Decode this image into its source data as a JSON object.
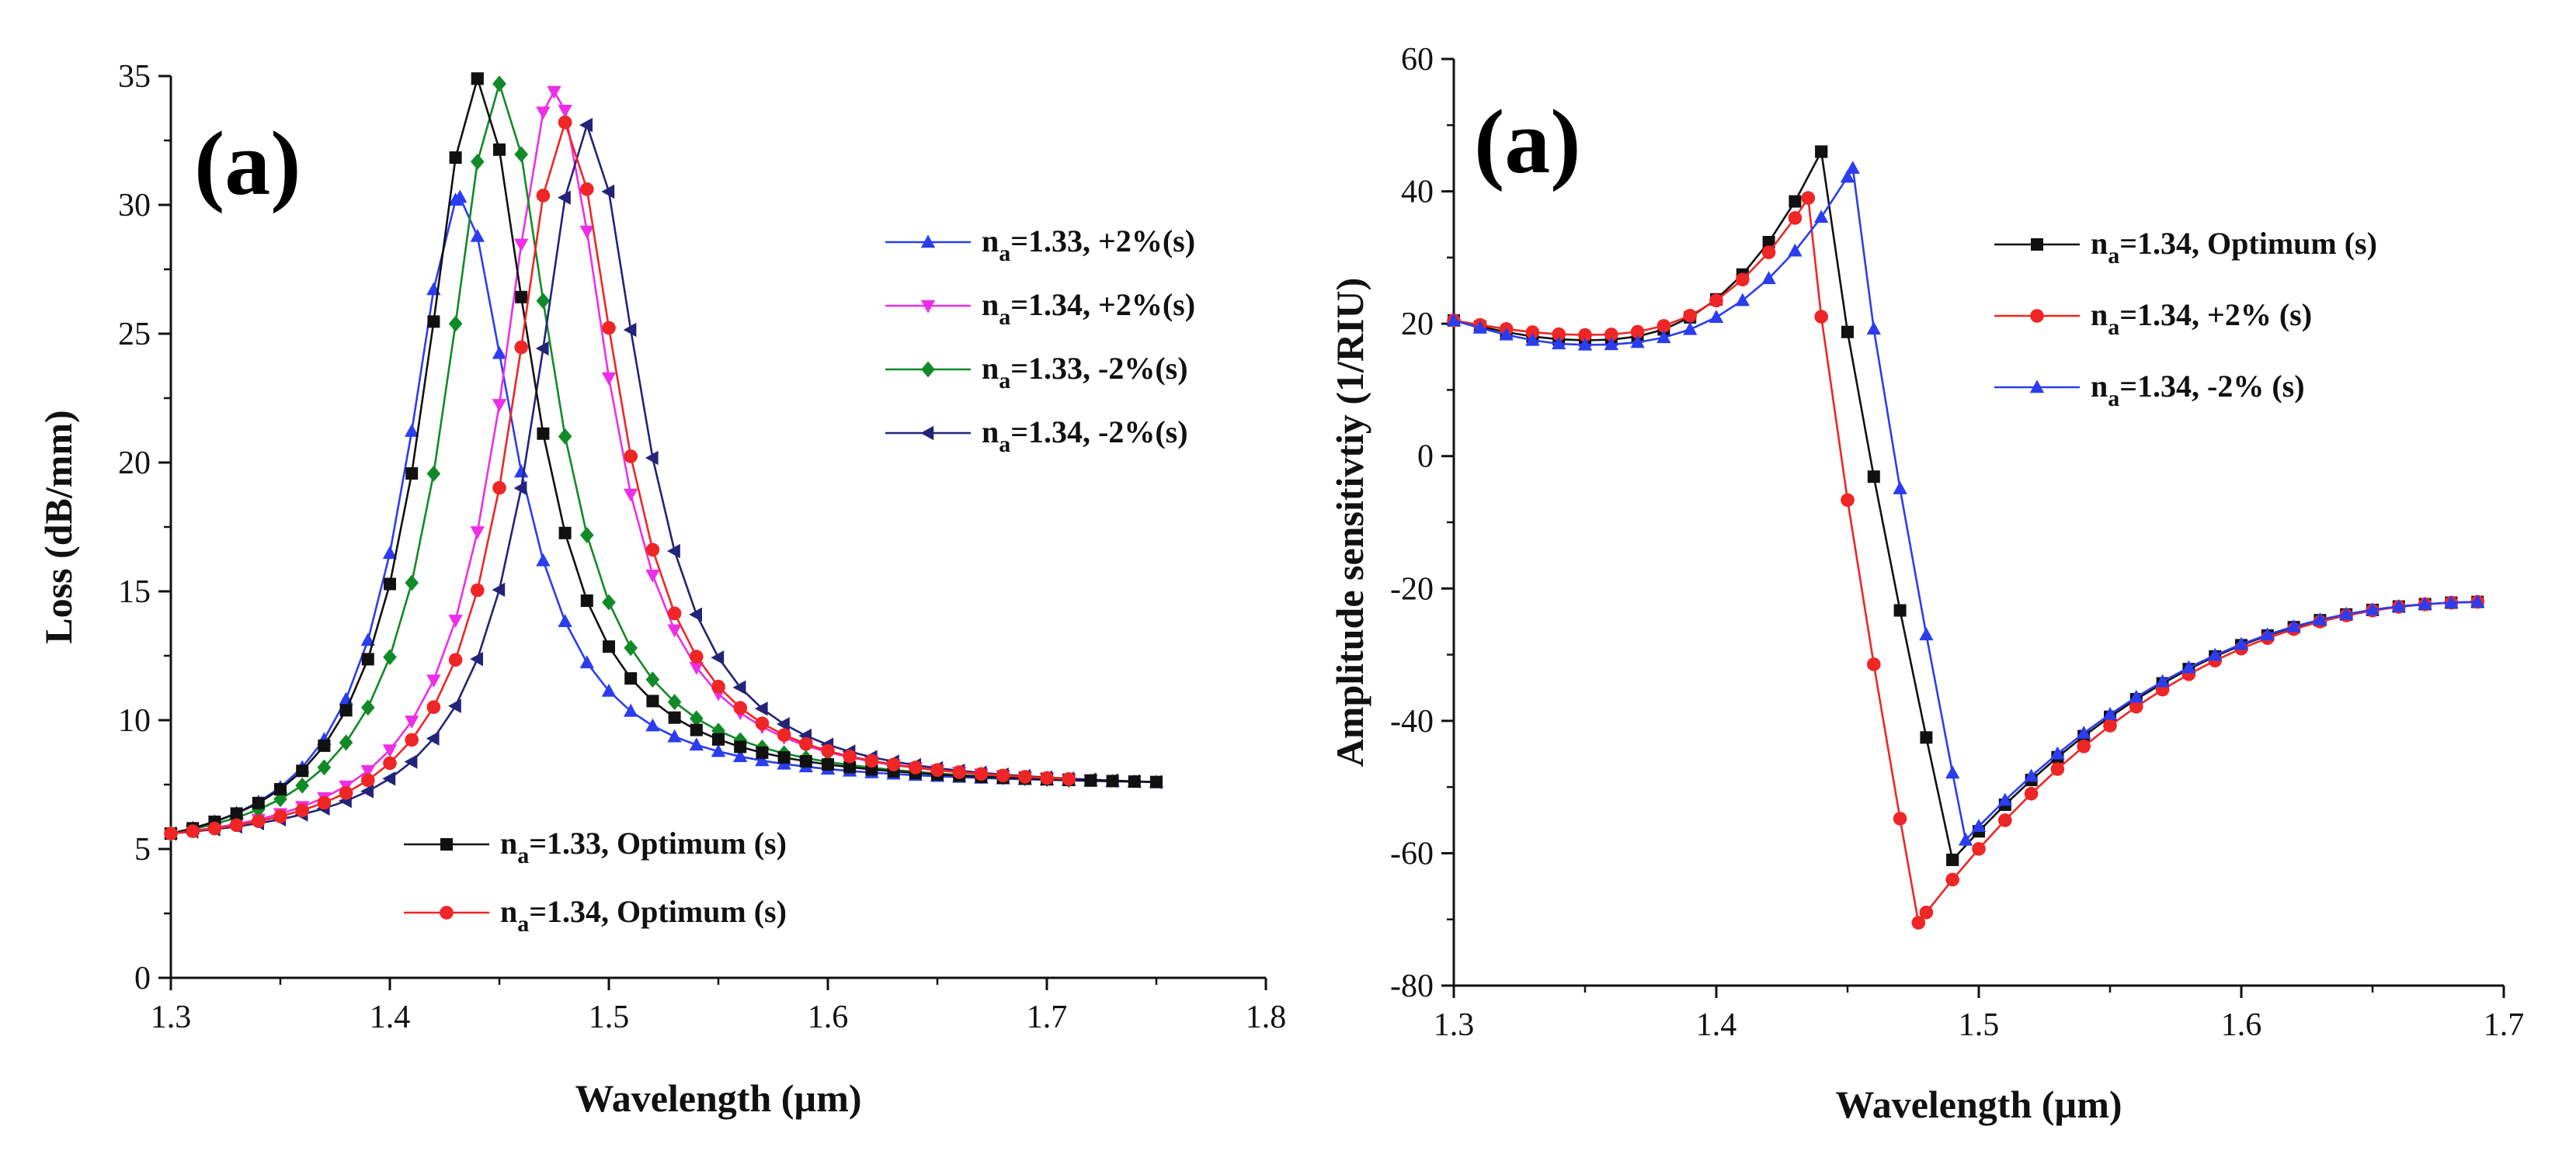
{
  "chart_data": [
    {
      "type": "line",
      "panel_label": "(a)",
      "xlabel": "Wavelength (µm)",
      "ylabel": "Loss (dB/mm)",
      "xlim": [
        1.3,
        1.8
      ],
      "ylim": [
        0,
        35
      ],
      "xticks": [
        1.3,
        1.4,
        1.5,
        1.6,
        1.7,
        1.8
      ],
      "xtick_labels": [
        "1.3",
        "1.4",
        "1.5",
        "1.6",
        "1.7",
        "1.8"
      ],
      "yticks": [
        0,
        5,
        10,
        15,
        20,
        25,
        30,
        35
      ],
      "ytick_labels": [
        "0",
        "5",
        "10",
        "15",
        "20",
        "25",
        "30",
        "35"
      ],
      "legend_groups": [
        {
          "position": "top-right",
          "series": [
            0,
            1,
            2,
            3
          ]
        },
        {
          "position": "bottom-center",
          "series": [
            4,
            5
          ]
        }
      ],
      "series": [
        {
          "name_main": "n",
          "name_sub": "a",
          "name_rest": "=1.33, +2%(s)",
          "color": "#2b3df0",
          "marker": "triangle-up",
          "x_start": 1.3,
          "x_step": 0.01,
          "peak": 1.432,
          "peak_value": 30.3,
          "n_points": 46
        },
        {
          "name_main": "n",
          "name_sub": "a",
          "name_rest": "=1.34, +2%(s)",
          "color": "#ee2ee8",
          "marker": "triangle-down",
          "x_start": 1.3,
          "x_step": 0.01,
          "peak": 1.475,
          "peak_value": 34.4,
          "n_points": 43
        },
        {
          "name_main": "n",
          "name_sub": "a",
          "name_rest": "=1.33, -2%(s)",
          "color": "#108a26",
          "marker": "diamond",
          "x_start": 1.3,
          "x_step": 0.01,
          "peak": 1.45,
          "peak_value": 34.7,
          "n_points": 42
        },
        {
          "name_main": "n",
          "name_sub": "a",
          "name_rest": "=1.34, -2%(s)",
          "color": "#23237a",
          "marker": "triangle-left",
          "x_start": 1.3,
          "x_step": 0.01,
          "peak": 1.49,
          "peak_value": 33.1,
          "n_points": 46
        },
        {
          "name_main": "n",
          "name_sub": "a",
          "name_rest": "=1.33, Optimum (s)",
          "color": "#111111",
          "marker": "square",
          "x_start": 1.3,
          "x_step": 0.01,
          "peak": 1.44,
          "peak_value": 34.9,
          "n_points": 46
        },
        {
          "name_main": "n",
          "name_sub": "a",
          "name_rest": "=1.34, Optimum (s)",
          "color": "#f02525",
          "marker": "circle",
          "x_start": 1.3,
          "x_step": 0.01,
          "peak": 1.48,
          "peak_value": 33.2,
          "n_points": 42
        }
      ]
    },
    {
      "type": "line",
      "panel_label": "(a)",
      "xlabel": "Wavelength (µm)",
      "ylabel": "Amplitude sensitivtiy (1/RIU)",
      "xlim": [
        1.3,
        1.7
      ],
      "ylim": [
        -80,
        60
      ],
      "xticks": [
        1.3,
        1.4,
        1.5,
        1.6,
        1.7
      ],
      "xtick_labels": [
        "1.3",
        "1.4",
        "1.5",
        "1.6",
        "1.7"
      ],
      "yticks": [
        -80,
        -60,
        -40,
        -20,
        0,
        20,
        40,
        60
      ],
      "ytick_labels": [
        "-80",
        "-60",
        "-40",
        "-20",
        "0",
        "20",
        "40",
        "60"
      ],
      "legend_groups": [
        {
          "position": "top-right",
          "series": [
            0,
            1,
            2
          ]
        }
      ],
      "series": [
        {
          "name_main": "n",
          "name_sub": "a",
          "name_rest": "=1.34, Optimum (s)",
          "color": "#111111",
          "marker": "square",
          "x_start": 1.3,
          "x_step": 0.01,
          "n_points": 40,
          "shape": {
            "min_x": 1.35,
            "min_y": 17.5,
            "pk_x": 1.44,
            "pk_y": 46,
            "low_x": 1.49,
            "low_y": -61
          }
        },
        {
          "name_main": "n",
          "name_sub": "a",
          "name_rest": "=1.34, +2% (s)",
          "color": "#f02525",
          "marker": "circle",
          "x_start": 1.3,
          "x_step": 0.01,
          "n_points": 40,
          "shape": {
            "min_x": 1.35,
            "min_y": 18.3,
            "pk_x": 1.435,
            "pk_y": 39,
            "low_x": 1.477,
            "low_y": -70.5
          }
        },
        {
          "name_main": "n",
          "name_sub": "a",
          "name_rest": "=1.34, -2% (s)",
          "color": "#2b3df0",
          "marker": "triangle-up",
          "x_start": 1.3,
          "x_step": 0.01,
          "n_points": 41,
          "shape": {
            "min_x": 1.35,
            "min_y": 16.8,
            "pk_x": 1.452,
            "pk_y": 43.5,
            "low_x": 1.495,
            "low_y": -58
          }
        }
      ]
    }
  ]
}
